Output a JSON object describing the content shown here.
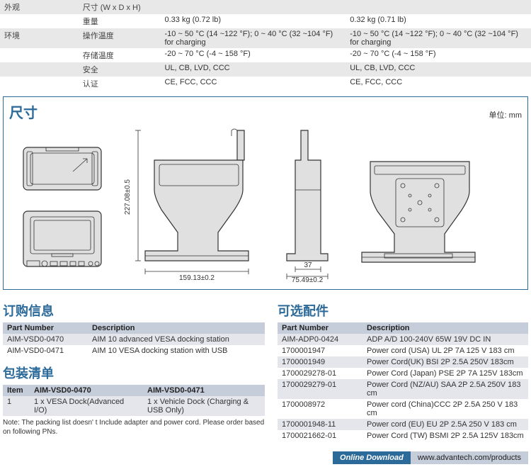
{
  "spec_rows": [
    {
      "cat": "外观",
      "label": "尺寸 (W x D x H)",
      "v1": "",
      "v2": "",
      "cls": "odd"
    },
    {
      "cat": "",
      "label": "重量",
      "v1": "0.33 kg (0.72 lb)",
      "v2": "0.32 kg (0.71 lb)",
      "cls": "even"
    },
    {
      "cat": "环境",
      "label": "操作温度",
      "v1": "-10 ~ 50 °C (14 ~122 °F); 0 ~ 40 °C (32 ~104 °F) for charging",
      "v2": "-10 ~ 50 °C (14 ~122 °F); 0 ~ 40 °C (32 ~104 °F) for charging",
      "cls": "odd"
    },
    {
      "cat": "",
      "label": "存储温度",
      "v1": "-20 ~ 70 °C (-4 ~ 158 °F)",
      "v2": "-20 ~ 70 °C (-4 ~ 158 °F)",
      "cls": "even"
    },
    {
      "cat": "",
      "label": "安全",
      "v1": "UL, CB, LVD, CCC",
      "v2": "UL, CB, LVD, CCC",
      "cls": "odd"
    },
    {
      "cat": "",
      "label": "认证",
      "v1": "CE, FCC, CCC",
      "v2": "CE, FCC, CCC",
      "cls": "even"
    }
  ],
  "dim": {
    "title": "尺寸",
    "unit": "单位: mm",
    "height": "227.08±0.5",
    "width": "159.13±0.2",
    "depth": "75.49±0.2",
    "inset": "37"
  },
  "order": {
    "title": "订购信息",
    "cols": [
      "Part Number",
      "Description"
    ],
    "rows": [
      [
        "AIM-VSD0-0470",
        "AIM 10 advanced VESA docking station"
      ],
      [
        "AIM-VSD0-0471",
        "AIM 10 VESA docking station with USB"
      ]
    ]
  },
  "pack": {
    "title": "包装清单",
    "cols": [
      "Item",
      "AIM-VSD0-0470",
      "AIM-VSD0-0471"
    ],
    "rows": [
      [
        "1",
        "1 x VESA Dock(Advanced I/O)",
        "1 x Vehicle Dock (Charging & USB  Only)"
      ]
    ],
    "note": "Note: The packing list doesn' t Include adapter and power cord. Please order based on following PNs."
  },
  "acc": {
    "title": "可选配件",
    "cols": [
      "Part Number",
      "Description"
    ],
    "rows": [
      [
        "AIM-ADP0-0424",
        "ADP A/D 100-240V 65W 19V DC IN"
      ],
      [
        "1700001947",
        "Power cord (USA) UL 2P 7A 125 V 183 cm"
      ],
      [
        "1700001949",
        "Power Cord(UK) BSI 2P 2.5A 250V 183cm"
      ],
      [
        "1700029278-01",
        "Power Cord (Japan) PSE 2P 7A 125V 183cm"
      ],
      [
        "1700029279-01",
        "Power Cord (NZ/AU) SAA 2P 2.5A 250V 183 cm"
      ],
      [
        "1700008972",
        "Power cord (China)CCC 2P 2.5A 250 V 183 cm"
      ],
      [
        "1700001948-11",
        "Power cord (EU) EU 2P 2.5A 250 V 183 cm"
      ],
      [
        "1700021662-01",
        "Power Cord (TW) BSMI 2P 2.5A 125V 183cm"
      ]
    ]
  },
  "download": {
    "label": "Online Download",
    "url": "www.advantech.com/products"
  }
}
